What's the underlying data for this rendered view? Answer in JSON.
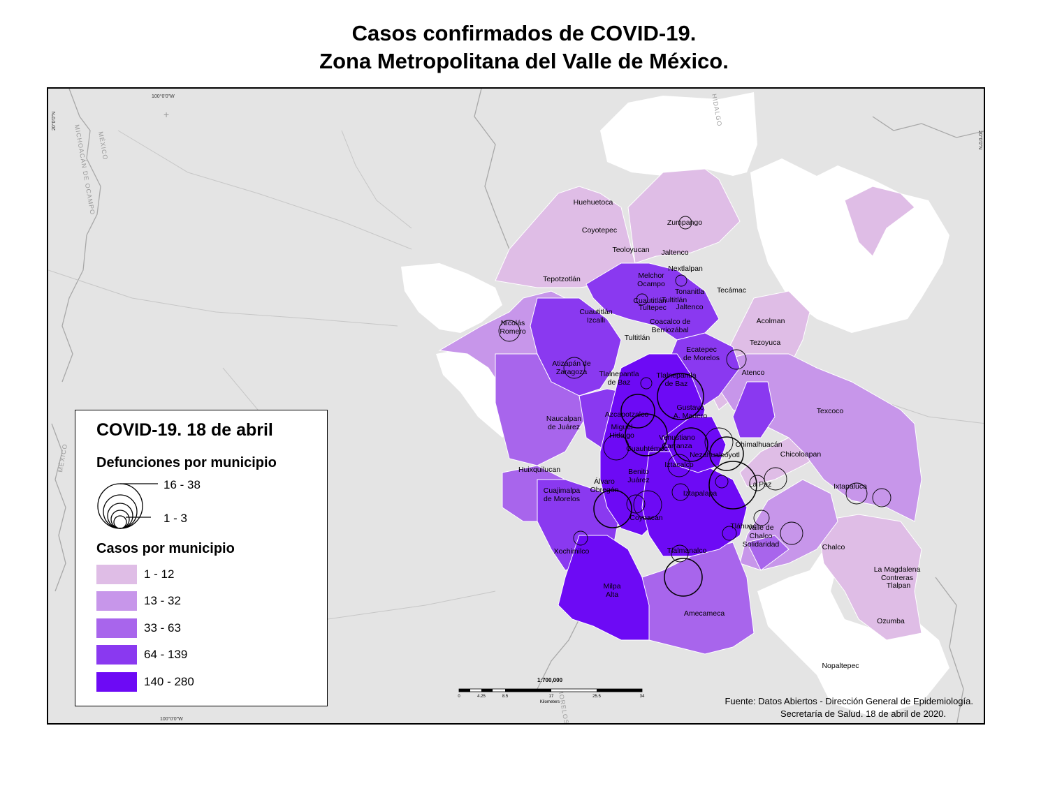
{
  "title": {
    "line1": "Casos confirmados de COVID-19.",
    "line2": "Zona Metropolitana del Valle de México."
  },
  "legend": {
    "title": "COVID-19. 18 de abril",
    "deaths_heading": "Defunciones por municipio",
    "deaths_max_label": "16 - 38",
    "deaths_min_label": "1 - 3",
    "cases_heading": "Casos por municipio",
    "classes": [
      {
        "label": "1 - 12",
        "color": "#dfbde6"
      },
      {
        "label": "13 - 32",
        "color": "#c796ea"
      },
      {
        "label": "33 - 63",
        "color": "#a865ec"
      },
      {
        "label": "64 - 139",
        "color": "#8a39f0"
      },
      {
        "label": "140 - 280",
        "color": "#6d0af5"
      }
    ]
  },
  "scale": {
    "ratio": "1:700,000",
    "ticks": [
      "0",
      "4.25",
      "8.5",
      "17",
      "25.5",
      "34"
    ],
    "unit": "Kilometers"
  },
  "graticule": {
    "lon_top": "100°0'0\"W",
    "lon_bottom": "100°0'0\"W",
    "lat_left": "20°0'0\"N",
    "lat_right": "20°0'0\"N"
  },
  "basemap_labels": [
    "MICHOACÁN DE OCAMPO",
    "MÉXICO",
    "MÉXICO",
    "HIDALGO",
    "MORELOS"
  ],
  "municipalities": [
    {
      "name": "Huehuetoca",
      "lines": [
        "Huehuetoca"
      ]
    },
    {
      "name": "Coyotepec",
      "lines": [
        "Coyotepec"
      ]
    },
    {
      "name": "Zumpango",
      "lines": [
        "Zumpango"
      ]
    },
    {
      "name": "Teoloyucan",
      "lines": [
        "Teoloyucan"
      ]
    },
    {
      "name": "Jaltenco",
      "lines": [
        "Jaltenco"
      ]
    },
    {
      "name": "Nextlalpan",
      "lines": [
        "Nextlalpan"
      ]
    },
    {
      "name": "Tepotzotlán",
      "lines": [
        "Tepotzotlán"
      ]
    },
    {
      "name": "Melchor Ocampo",
      "lines": [
        "Melchor",
        "Ocampo"
      ]
    },
    {
      "name": "Tecámac",
      "lines": [
        "Tecámac"
      ]
    },
    {
      "name": "Tonanitla",
      "lines": [
        "Tonanitla"
      ]
    },
    {
      "name": "Cuautitlán",
      "lines": [
        "Cuautitlán"
      ]
    },
    {
      "name": "Tultitlán",
      "lines": [
        "Tultitlán"
      ]
    },
    {
      "name": "Tultepec",
      "lines": [
        "Tultepec"
      ]
    },
    {
      "name": "Jaltenco",
      "lines": [
        "Jaltenco"
      ]
    },
    {
      "name": "Cuautitlán Izcalli",
      "lines": [
        "Cuautitlán",
        "Izcalli"
      ]
    },
    {
      "name": "Coacalco de Berriozábal",
      "lines": [
        "Coacalco de",
        "Berriozábal"
      ]
    },
    {
      "name": "Acolman",
      "lines": [
        "Acolman"
      ]
    },
    {
      "name": "Nicolás Romero",
      "lines": [
        "Nicolás",
        "Romero"
      ]
    },
    {
      "name": "Tultitlán",
      "lines": [
        "Tultitlán"
      ]
    },
    {
      "name": "Tezoyuca",
      "lines": [
        "Tezoyuca"
      ]
    },
    {
      "name": "Ecatepec de Morelos",
      "lines": [
        "Ecatepec",
        "de Morelos"
      ]
    },
    {
      "name": "Atizapán de Zaragoza",
      "lines": [
        "Atizapán de",
        "Zaragoza"
      ]
    },
    {
      "name": "Atenco",
      "lines": [
        "Atenco"
      ]
    },
    {
      "name": "Tlalnepantla de Baz",
      "lines": [
        "Tlalnepantla",
        "de Baz"
      ]
    },
    {
      "name": "Tlalnepantla de Baz",
      "lines": [
        "Tlalnepantla",
        "de Baz"
      ]
    },
    {
      "name": "Gustavo A. Madero",
      "lines": [
        "Gustavo",
        "A. Madero"
      ]
    },
    {
      "name": "Texcoco",
      "lines": [
        "Texcoco"
      ]
    },
    {
      "name": "Azcapotzalco",
      "lines": [
        "Azcapotzalco"
      ]
    },
    {
      "name": "Naucalpan de Juárez",
      "lines": [
        "Naucalpan",
        "de Juárez"
      ]
    },
    {
      "name": "Miguel Hidalgo",
      "lines": [
        "Miguel",
        "Hidalgo"
      ]
    },
    {
      "name": "Venustiano Carranza",
      "lines": [
        "Venustiano",
        "Carranza"
      ]
    },
    {
      "name": "Cuauhtémoc",
      "lines": [
        "Cuauhtémoc"
      ]
    },
    {
      "name": "Chimalhuacán",
      "lines": [
        "Chimalhuacán"
      ]
    },
    {
      "name": "Nezahualcóyotl",
      "lines": [
        "Nezahualcóyotl"
      ]
    },
    {
      "name": "Chicoloapan",
      "lines": [
        "Chicoloapan"
      ]
    },
    {
      "name": "Iztacalco",
      "lines": [
        "Iztacalco"
      ]
    },
    {
      "name": "Huixquilucan",
      "lines": [
        "Huixquilucan"
      ]
    },
    {
      "name": "Benito Juárez",
      "lines": [
        "Benito",
        "Juárez"
      ]
    },
    {
      "name": "La Paz",
      "lines": [
        "La Paz"
      ]
    },
    {
      "name": "Ixtapaluca",
      "lines": [
        "Ixtapaluca"
      ]
    },
    {
      "name": "Álvaro Obregón",
      "lines": [
        "Álvaro",
        "Obregón"
      ]
    },
    {
      "name": "Cuajimalpa de Morelos",
      "lines": [
        "Cuajimalpa",
        "de Morelos"
      ]
    },
    {
      "name": "Iztapalapa",
      "lines": [
        "Iztapalapa"
      ]
    },
    {
      "name": "Coyoacán",
      "lines": [
        "Coyoacán"
      ]
    },
    {
      "name": "Tláhuac",
      "lines": [
        "Tláhuac"
      ]
    },
    {
      "name": "Valle de Chalco Solidaridad",
      "lines": [
        "Valle de",
        "Chalco",
        "Solidaridad"
      ]
    },
    {
      "name": "Chalco",
      "lines": [
        "Chalco"
      ]
    },
    {
      "name": "La Magdalena Contreras",
      "lines": [
        "La Magdalena",
        "Contreras"
      ]
    },
    {
      "name": "Xochimilco",
      "lines": [
        "Xochimilco"
      ]
    },
    {
      "name": "Tlalmanalco",
      "lines": [
        "Tlalmanalco"
      ]
    },
    {
      "name": "Tlalpan",
      "lines": [
        "Tlalpan"
      ]
    },
    {
      "name": "Milpa Alta",
      "lines": [
        "Milpa",
        "Alta"
      ]
    },
    {
      "name": "Amecameca",
      "lines": [
        "Amecameca"
      ]
    },
    {
      "name": "Ozumba",
      "lines": [
        "Ozumba"
      ]
    },
    {
      "name": "Nopaltepec",
      "lines": [
        "Nopaltepec"
      ]
    }
  ],
  "source": {
    "line1": "Fuente: Datos Abiertos - Dirección General de Epidemiología.",
    "line2": "Secretaría de Salud. 18 de abril de 2020."
  }
}
